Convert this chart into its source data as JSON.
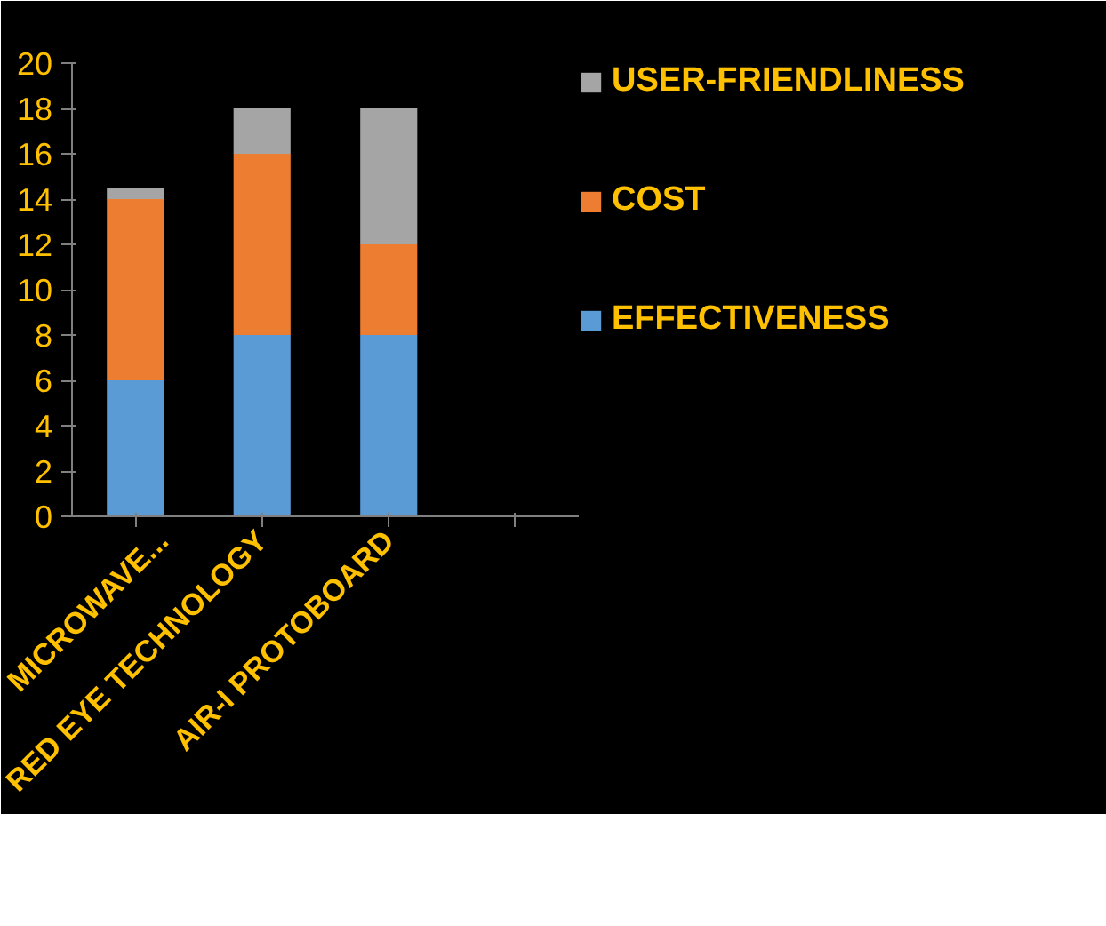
{
  "chart_data": {
    "type": "bar",
    "stacked": true,
    "categories": [
      "MICROWAVE...",
      "RED EYE TECHNOLOGY",
      "AIR-I PROTOBOARD",
      null
    ],
    "series": [
      {
        "name": "EFFECTIVENESS",
        "color": "#5b9bd5",
        "values": [
          6,
          8,
          8,
          null
        ]
      },
      {
        "name": "COST",
        "color": "#ed7d31",
        "values": [
          8,
          8,
          4,
          null
        ]
      },
      {
        "name": "USER-FRIENDLINESS",
        "color": "#a5a5a5",
        "values": [
          0.5,
          2,
          6,
          null
        ]
      }
    ],
    "ylim": [
      0,
      20
    ],
    "yticks": [
      0,
      2,
      4,
      6,
      8,
      10,
      12,
      14,
      16,
      18,
      20
    ],
    "grid": false,
    "legend": "right"
  }
}
